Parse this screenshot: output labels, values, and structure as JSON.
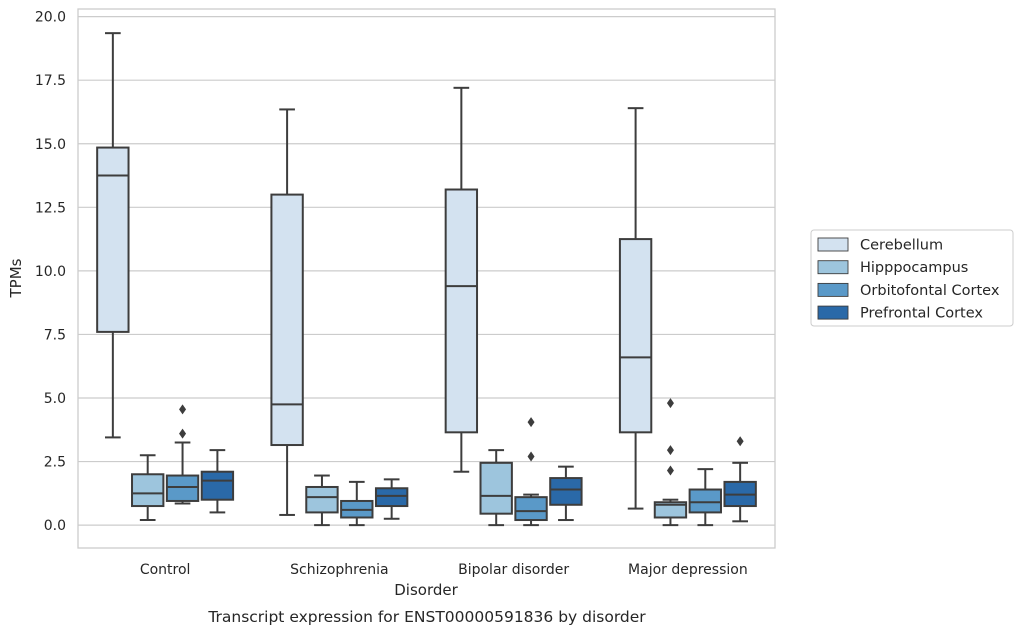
{
  "chart_data": {
    "type": "box",
    "title": "",
    "caption": "Transcript expression for ENST00000591836 by disorder",
    "xlabel": "Disorder",
    "ylabel": "TPMs",
    "ylim": [
      -0.9,
      20.3
    ],
    "yticks": [
      "0.0",
      "2.5",
      "5.0",
      "7.5",
      "10.0",
      "12.5",
      "15.0",
      "17.5",
      "20.0"
    ],
    "grid": "horizontal",
    "legend_position": "right",
    "categories": [
      "Control",
      "Schizophrenia",
      "Bipolar disorder",
      "Major depression"
    ],
    "series": [
      {
        "name": "Cerebellum",
        "color": "#d3e2f0",
        "boxes": [
          {
            "whisker_low": 3.45,
            "q1": 7.6,
            "median": 13.75,
            "q3": 14.85,
            "whisker_high": 19.35,
            "outliers": []
          },
          {
            "whisker_low": 0.4,
            "q1": 3.15,
            "median": 4.75,
            "q3": 13.0,
            "whisker_high": 16.35,
            "outliers": []
          },
          {
            "whisker_low": 2.1,
            "q1": 3.65,
            "median": 9.4,
            "q3": 13.2,
            "whisker_high": 17.2,
            "outliers": []
          },
          {
            "whisker_low": 0.65,
            "q1": 3.65,
            "median": 6.6,
            "q3": 11.25,
            "whisker_high": 16.4,
            "outliers": []
          }
        ]
      },
      {
        "name": "Hipppocampus",
        "color": "#9dc5dd",
        "boxes": [
          {
            "whisker_low": 0.2,
            "q1": 0.75,
            "median": 1.25,
            "q3": 2.0,
            "whisker_high": 2.75,
            "outliers": []
          },
          {
            "whisker_low": 0.0,
            "q1": 0.5,
            "median": 1.1,
            "q3": 1.5,
            "whisker_high": 1.95,
            "outliers": []
          },
          {
            "whisker_low": 0.0,
            "q1": 0.45,
            "median": 1.15,
            "q3": 2.45,
            "whisker_high": 2.95,
            "outliers": []
          },
          {
            "whisker_low": 0.0,
            "q1": 0.3,
            "median": 0.8,
            "q3": 0.9,
            "whisker_high": 1.0,
            "outliers": [
              2.15,
              2.95,
              4.8
            ]
          }
        ]
      },
      {
        "name": "Orbitofontal Cortex",
        "color": "#5a99c8",
        "boxes": [
          {
            "whisker_low": 0.85,
            "q1": 0.95,
            "median": 1.5,
            "q3": 1.95,
            "whisker_high": 3.25,
            "outliers": [
              3.6,
              4.55
            ]
          },
          {
            "whisker_low": 0.0,
            "q1": 0.3,
            "median": 0.6,
            "q3": 0.95,
            "whisker_high": 1.7,
            "outliers": []
          },
          {
            "whisker_low": 0.0,
            "q1": 0.2,
            "median": 0.55,
            "q3": 1.1,
            "whisker_high": 1.2,
            "outliers": [
              2.7,
              4.05
            ]
          },
          {
            "whisker_low": 0.0,
            "q1": 0.5,
            "median": 0.9,
            "q3": 1.4,
            "whisker_high": 2.2,
            "outliers": []
          }
        ]
      },
      {
        "name": "Prefrontal Cortex",
        "color": "#2a69a8",
        "boxes": [
          {
            "whisker_low": 0.5,
            "q1": 1.0,
            "median": 1.75,
            "q3": 2.1,
            "whisker_high": 2.95,
            "outliers": []
          },
          {
            "whisker_low": 0.25,
            "q1": 0.75,
            "median": 1.15,
            "q3": 1.45,
            "whisker_high": 1.8,
            "outliers": []
          },
          {
            "whisker_low": 0.2,
            "q1": 0.8,
            "median": 1.4,
            "q3": 1.85,
            "whisker_high": 2.3,
            "outliers": []
          },
          {
            "whisker_low": 0.15,
            "q1": 0.75,
            "median": 1.2,
            "q3": 1.7,
            "whisker_high": 2.45,
            "outliers": [
              3.3
            ]
          }
        ]
      }
    ]
  }
}
